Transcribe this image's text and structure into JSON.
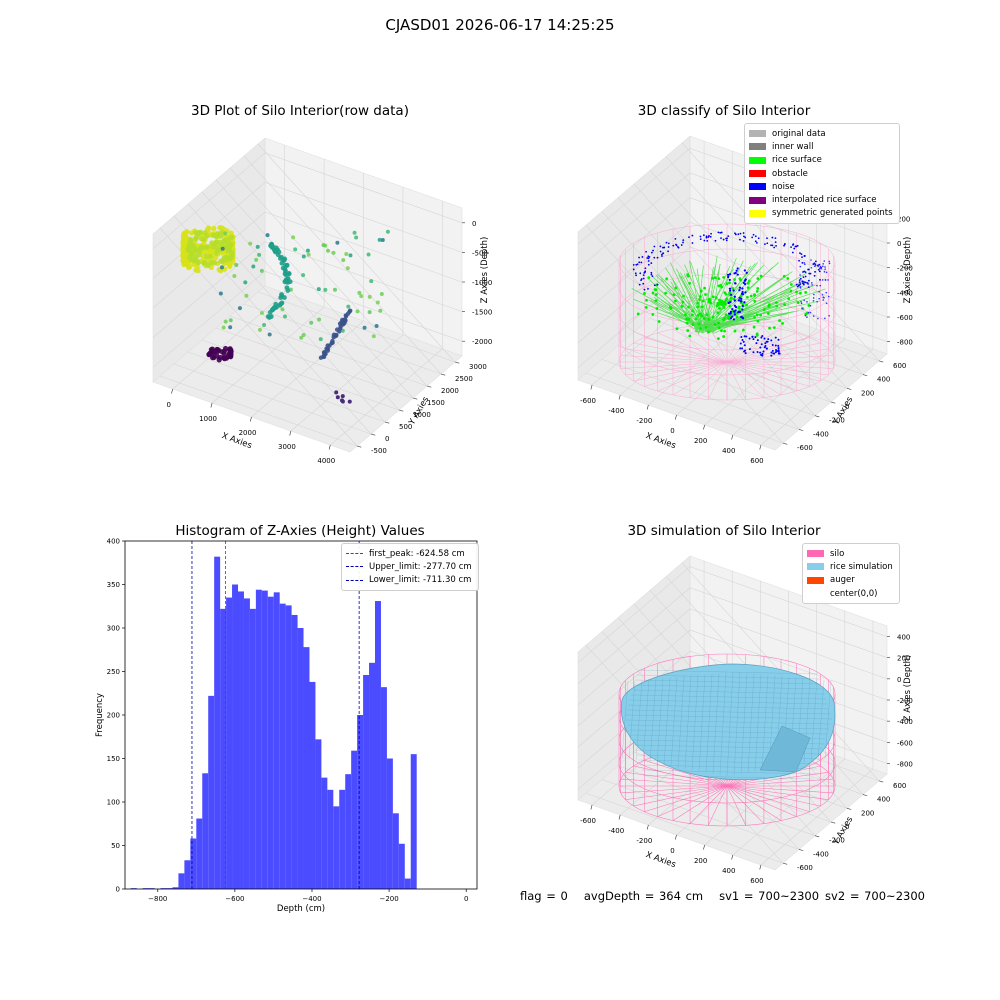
{
  "figure_title": "CJASD01 2026-06-17 14:25:25",
  "status": {
    "flag": "flag = 0",
    "avg_depth": "avgDepth = 364 cm",
    "sv1": "sv1 = 700~2300",
    "sv2": "sv2 = 700~2300"
  },
  "chart_data": [
    {
      "type": "scatter",
      "title": "3D Plot of Silo Interior(row data)",
      "xlabel": "X Axies",
      "ylabel": "Y Axies",
      "zlabel": "Z Axies (Depth)",
      "x_ticks": [
        0,
        1000,
        2000,
        3000,
        4000
      ],
      "y_ticks": [
        -500,
        0,
        500,
        1000,
        1500,
        2000,
        2500,
        3000
      ],
      "z_ticks": [
        0,
        -500,
        -1000,
        -1500,
        -2000
      ],
      "colormap": "viridis",
      "colors": {
        "high": "#dfe318",
        "mid": "#21918c",
        "low": "#440154"
      }
    },
    {
      "type": "scatter",
      "title": "3D classify of Silo Interior",
      "xlabel": "X Axies",
      "ylabel": "Y Axies",
      "zlabel": "Z Axies (Depth)",
      "x_ticks": [
        -600,
        -400,
        -200,
        0,
        200,
        400,
        600
      ],
      "y_ticks": [
        -600,
        -400,
        -200,
        0,
        200,
        400,
        600
      ],
      "z_ticks": [
        200,
        0,
        -200,
        -400,
        -600,
        -800
      ],
      "legend": [
        {
          "label": "original data",
          "color": "#b3b3b3"
        },
        {
          "label": "inner wall",
          "color": "#808080"
        },
        {
          "label": "rice surface",
          "color": "#00ff00"
        },
        {
          "label": "obstacle",
          "color": "#ff0000"
        },
        {
          "label": "noise",
          "color": "#0000ff"
        },
        {
          "label": "interpolated rice surface",
          "color": "#800080"
        },
        {
          "label": "symmetric generated points",
          "color": "#ffff00"
        }
      ]
    },
    {
      "type": "bar",
      "title": "Histogram of Z-Axies (Height) Values",
      "xlabel": "Depth (cm)",
      "ylabel": "Frequency",
      "xlim": [
        -885,
        28
      ],
      "ylim": [
        0,
        400
      ],
      "x_ticks": [
        -800,
        -600,
        -400,
        -200,
        0
      ],
      "y_ticks": [
        0,
        50,
        100,
        150,
        200,
        250,
        300,
        350,
        400
      ],
      "bin_start": -870,
      "bin_width": 15.45,
      "values": [
        1,
        0,
        1,
        1,
        0,
        1,
        1,
        2,
        18,
        33,
        58,
        81,
        133,
        222,
        382,
        322,
        335,
        350,
        342,
        334,
        322,
        344,
        343,
        336,
        341,
        328,
        326,
        315,
        300,
        278,
        238,
        172,
        128,
        114,
        95,
        114,
        132,
        159,
        200,
        246,
        260,
        331,
        232,
        150,
        87,
        52,
        12,
        155
      ],
      "bar_color": "#4b4bff",
      "vlines": [
        {
          "label": "first_peak: -624.58 cm",
          "x": -624.58,
          "color": "#ff0000"
        },
        {
          "label": "Upper_limit: -277.70 cm",
          "x": -277.7,
          "color": "#0000aa"
        },
        {
          "label": "Lower_limit: -711.30 cm",
          "x": -711.3,
          "color": "#0000aa"
        }
      ]
    },
    {
      "type": "area",
      "title": "3D simulation of Silo Interior",
      "xlabel": "X Axies",
      "ylabel": "Y Axies",
      "zlabel": "Z Axies (Depth)",
      "x_ticks": [
        -600,
        -400,
        -200,
        0,
        200,
        400,
        600
      ],
      "y_ticks": [
        -600,
        -400,
        -200,
        0,
        200,
        400,
        600
      ],
      "z_ticks": [
        400,
        200,
        0,
        -200,
        -400,
        -600,
        -800
      ],
      "legend": [
        {
          "label": "silo",
          "color": "#ff69b4"
        },
        {
          "label": "rice simulation",
          "color": "#87ceeb"
        },
        {
          "label": "auger",
          "color": "#ff4500"
        },
        {
          "label": "center(0,0)",
          "color": "#ffffff"
        }
      ]
    }
  ]
}
